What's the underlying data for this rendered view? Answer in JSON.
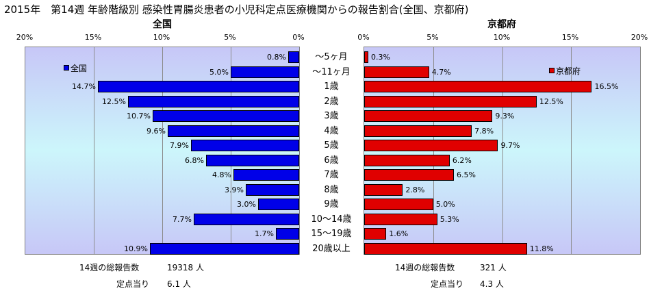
{
  "title": "2015年　第14週 年齢階級別 感染性胃腸炎患者の小児科定点医療機関からの報告割合(全国、京都府)",
  "chart_data": {
    "type": "bar",
    "orientation": "horizontal-back-to-back",
    "categories": [
      "～5ヶ月",
      "～11ヶ月",
      "1歳",
      "2歳",
      "3歳",
      "4歳",
      "5歳",
      "6歳",
      "7歳",
      "8歳",
      "9歳",
      "10～14歳",
      "15～19歳",
      "20歳以上"
    ],
    "xlim": [
      0,
      20
    ],
    "xticks": [
      "20%",
      "15%",
      "10%",
      "5%",
      "0%"
    ],
    "xticks_right": [
      "0%",
      "5%",
      "10%",
      "15%",
      "20%"
    ],
    "grid": true,
    "series": [
      {
        "name": "全国",
        "panel_title": "全国",
        "color": "#0000e8",
        "values": [
          0.8,
          5.0,
          14.7,
          12.5,
          10.7,
          9.6,
          7.9,
          6.8,
          4.8,
          3.9,
          3.0,
          7.7,
          1.7,
          10.9
        ],
        "labels": [
          "0.8%",
          "5.0%",
          "14.7%",
          "12.5%",
          "10.7%",
          "9.6%",
          "7.9%",
          "6.8%",
          "4.8%",
          "3.9%",
          "3.0%",
          "7.7%",
          "1.7%",
          "10.9%"
        ],
        "legend_position": "top-left"
      },
      {
        "name": "京都府",
        "panel_title": "京都府",
        "color": "#e00000",
        "values": [
          0.3,
          4.7,
          16.5,
          12.5,
          9.3,
          7.8,
          9.7,
          6.2,
          6.5,
          2.8,
          5.0,
          5.3,
          1.6,
          11.8
        ],
        "labels": [
          "0.3%",
          "4.7%",
          "16.5%",
          "12.5%",
          "9.3%",
          "7.8%",
          "9.7%",
          "6.2%",
          "6.5%",
          "2.8%",
          "5.0%",
          "5.3%",
          "1.6%",
          "11.8%"
        ],
        "legend_position": "top-right"
      }
    ]
  },
  "footer": {
    "national": {
      "total_label": "14週の総報告数",
      "total_value": "19318 人",
      "per_label": "定点当り",
      "per_value": "6.1 人"
    },
    "kyoto": {
      "total_label": "14週の総報告数",
      "total_value": "321 人",
      "per_label": "定点当り",
      "per_value": "4.3 人"
    }
  }
}
